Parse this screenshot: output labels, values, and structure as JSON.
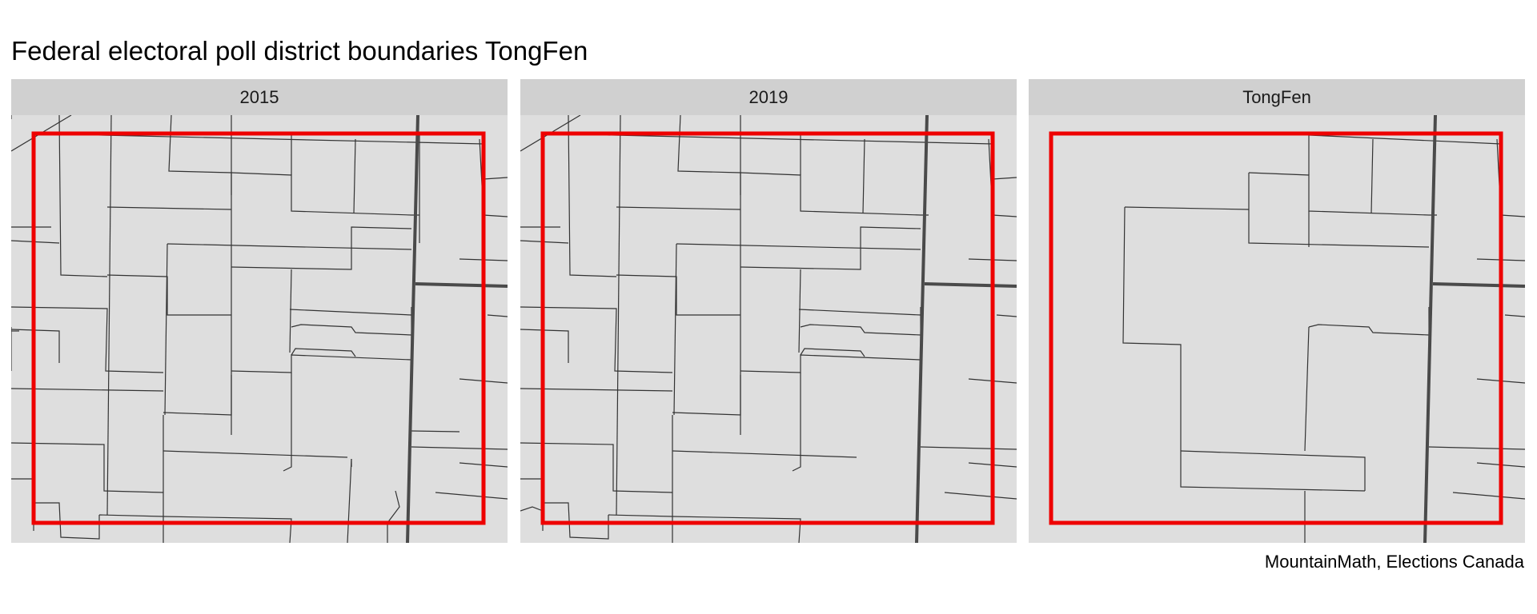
{
  "title": "Federal electoral poll district boundaries TongFen",
  "caption": "MountainMath, Elections Canada",
  "colors": {
    "panel_background": "#dedede",
    "strip_background": "#d0d0d0",
    "boundary_line": "#333333",
    "road_line": "#4a4a4a",
    "highlight_box": "#ee0000"
  },
  "panels": [
    {
      "label": "2015"
    },
    {
      "label": "2019"
    },
    {
      "label": "TongFen"
    }
  ]
}
